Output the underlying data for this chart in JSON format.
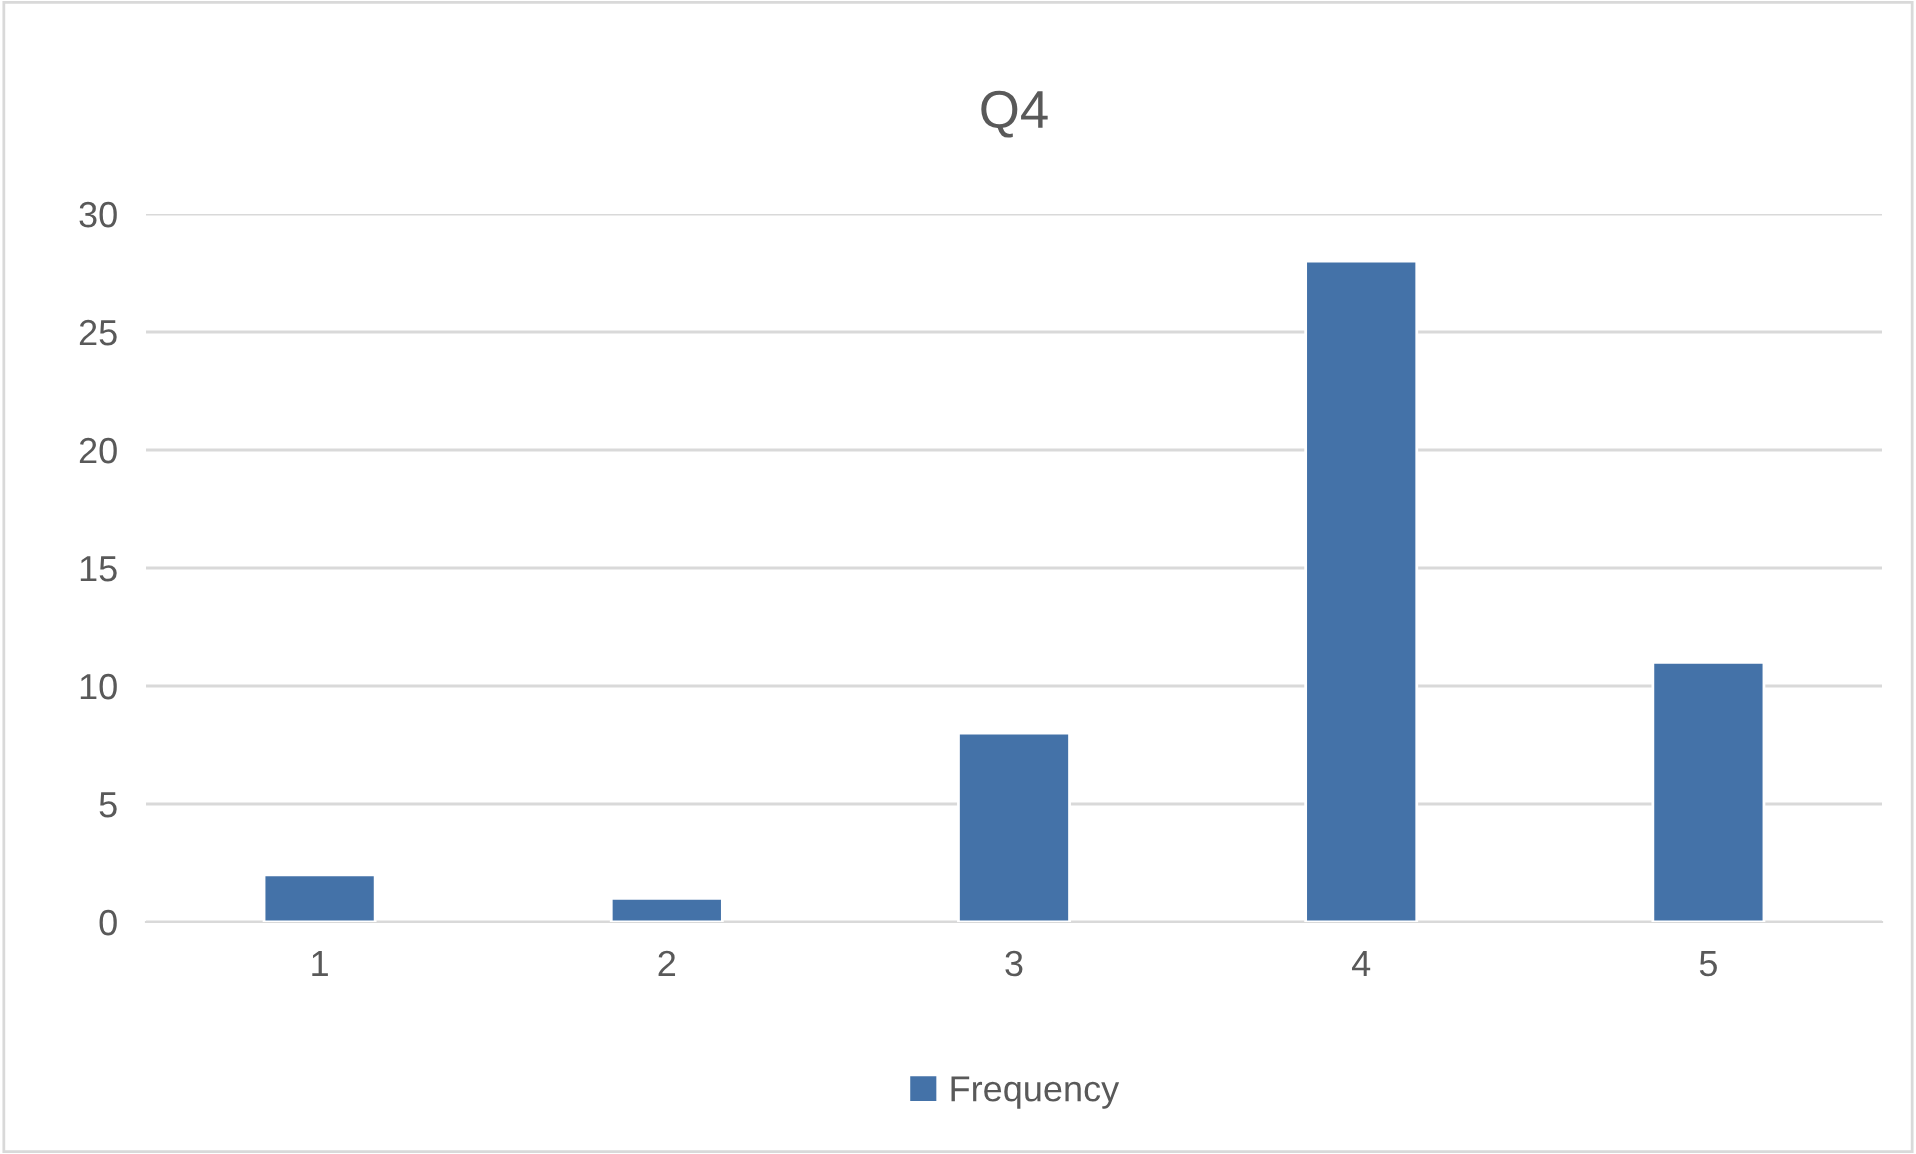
{
  "chart_data": {
    "type": "bar",
    "title": "Q4",
    "categories": [
      "1",
      "2",
      "3",
      "4",
      "5"
    ],
    "series": [
      {
        "name": "Frequency",
        "color": "#4472a8",
        "values": [
          2,
          1,
          8,
          28,
          11
        ]
      }
    ],
    "ylim": [
      0,
      30
    ],
    "yticks": [
      0,
      5,
      10,
      15,
      20,
      25,
      30
    ],
    "grid": "y",
    "legend": "bottom"
  }
}
